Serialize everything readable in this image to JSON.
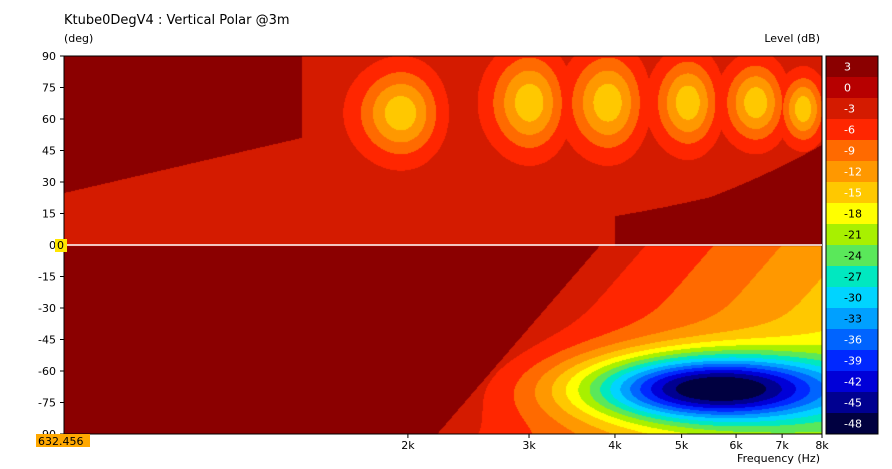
{
  "chart_data": {
    "type": "heatmap",
    "title": "Ktube0DegV4 : Vertical Polar @3m",
    "ylabel": "(deg)",
    "xlabel": "Frequency  (Hz)",
    "colorbar_label": "Level  (dB)",
    "x_scale": "log",
    "xlim": [
      632.456,
      8000
    ],
    "ylim": [
      -90,
      90
    ],
    "x_ticks": [
      {
        "value": 2000,
        "label": "2k"
      },
      {
        "value": 3000,
        "label": "3k"
      },
      {
        "value": 4000,
        "label": "4k"
      },
      {
        "value": 5000,
        "label": "5k"
      },
      {
        "value": 6000,
        "label": "6k"
      },
      {
        "value": 7000,
        "label": "7k"
      },
      {
        "value": 8000,
        "label": "8k"
      }
    ],
    "y_ticks": [
      {
        "value": 90,
        "label": "90"
      },
      {
        "value": 75,
        "label": "75"
      },
      {
        "value": 60,
        "label": "60"
      },
      {
        "value": 45,
        "label": "45"
      },
      {
        "value": 30,
        "label": "30"
      },
      {
        "value": 15,
        "label": "15"
      },
      {
        "value": 0,
        "label": "0"
      },
      {
        "value": -15,
        "label": "-15"
      },
      {
        "value": -30,
        "label": "-30"
      },
      {
        "value": -45,
        "label": "-45"
      },
      {
        "value": -60,
        "label": "-60"
      },
      {
        "value": -75,
        "label": "-75"
      },
      {
        "value": -90,
        "label": "-90"
      }
    ],
    "cursor_y_label": "0",
    "cursor_x_label": "632.456",
    "colorbar": [
      {
        "label": "3",
        "color": "#8b0000"
      },
      {
        "label": "0",
        "color": "#b70000"
      },
      {
        "label": "-3",
        "color": "#d41b00"
      },
      {
        "label": "-6",
        "color": "#ff2600"
      },
      {
        "label": "-9",
        "color": "#ff6a00"
      },
      {
        "label": "-12",
        "color": "#ff9800"
      },
      {
        "label": "-15",
        "color": "#ffc800"
      },
      {
        "label": "-18",
        "color": "#ffff00"
      },
      {
        "label": "-21",
        "color": "#a8f000"
      },
      {
        "label": "-24",
        "color": "#5ae85a"
      },
      {
        "label": "-27",
        "color": "#00e8c0"
      },
      {
        "label": "-30",
        "color": "#00d4ff"
      },
      {
        "label": "-33",
        "color": "#00a0ff"
      },
      {
        "label": "-36",
        "color": "#0064ff"
      },
      {
        "label": "-39",
        "color": "#0028ff"
      },
      {
        "label": "-42",
        "color": "#0000d8"
      },
      {
        "label": "-45",
        "color": "#000090"
      },
      {
        "label": "-48",
        "color": "#000040"
      }
    ],
    "grid": false
  }
}
